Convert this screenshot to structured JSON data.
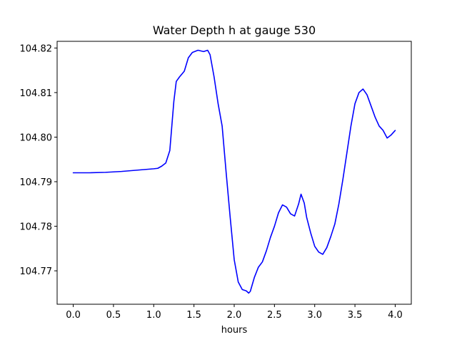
{
  "chart_data": {
    "type": "line",
    "title": "Water Depth h at gauge 530",
    "xlabel": "hours",
    "ylabel": "",
    "xlim": [
      -0.2,
      4.2
    ],
    "ylim": [
      104.7625,
      104.8215
    ],
    "x_ticks": [
      0.0,
      0.5,
      1.0,
      1.5,
      2.0,
      2.5,
      3.0,
      3.5,
      4.0
    ],
    "x_tick_labels": [
      "0.0",
      "0.5",
      "1.0",
      "1.5",
      "2.0",
      "2.5",
      "3.0",
      "3.5",
      "4.0"
    ],
    "y_ticks": [
      104.77,
      104.78,
      104.79,
      104.8,
      104.81,
      104.82
    ],
    "y_tick_labels": [
      "104.77",
      "104.78",
      "104.79",
      "104.80",
      "104.81",
      "104.82"
    ],
    "grid": false,
    "legend": false,
    "series": [
      {
        "color": "#0000ff",
        "x": [
          0.0,
          0.2,
          0.4,
          0.6,
          0.8,
          1.0,
          1.05,
          1.1,
          1.15,
          1.2,
          1.25,
          1.28,
          1.32,
          1.38,
          1.43,
          1.48,
          1.55,
          1.62,
          1.67,
          1.7,
          1.75,
          1.8,
          1.85,
          1.9,
          1.95,
          2.0,
          2.05,
          2.1,
          2.15,
          2.18,
          2.2,
          2.25,
          2.3,
          2.35,
          2.4,
          2.45,
          2.5,
          2.55,
          2.6,
          2.65,
          2.7,
          2.75,
          2.8,
          2.83,
          2.87,
          2.9,
          2.95,
          3.0,
          3.05,
          3.1,
          3.15,
          3.2,
          3.25,
          3.3,
          3.35,
          3.4,
          3.45,
          3.5,
          3.55,
          3.6,
          3.65,
          3.7,
          3.75,
          3.8,
          3.85,
          3.9,
          3.95,
          4.0
        ],
        "y": [
          104.792,
          104.792,
          104.7921,
          104.7923,
          104.7926,
          104.7929,
          104.793,
          104.7935,
          104.7942,
          104.797,
          104.808,
          104.8125,
          104.8135,
          104.8148,
          104.8178,
          104.819,
          104.8195,
          104.8192,
          104.8195,
          104.8185,
          104.8135,
          104.8075,
          104.8025,
          104.792,
          104.782,
          104.7725,
          104.7675,
          104.7658,
          104.7655,
          104.765,
          104.7654,
          104.7685,
          104.7708,
          104.772,
          104.7745,
          104.7775,
          104.78,
          104.783,
          104.7848,
          104.7843,
          104.7828,
          104.7823,
          104.785,
          104.7872,
          104.7852,
          104.782,
          104.7785,
          104.7755,
          104.7742,
          104.7737,
          104.7752,
          104.7777,
          104.7805,
          104.785,
          104.7905,
          104.7965,
          104.8025,
          104.8075,
          104.81,
          104.8108,
          104.8095,
          104.807,
          104.8045,
          104.8025,
          104.8015,
          104.7998,
          104.8005,
          104.8015
        ]
      }
    ]
  }
}
